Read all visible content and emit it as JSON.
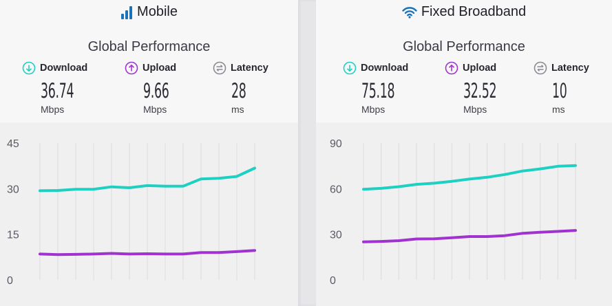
{
  "panels": [
    {
      "title": "Mobile",
      "icon": "signal-bars-icon",
      "subtitle": "Global Performance",
      "metrics": {
        "download": {
          "label": "Download",
          "value": "36.74",
          "unit": "Mbps",
          "color": "#1ed0c1"
        },
        "upload": {
          "label": "Upload",
          "value": "9.66",
          "unit": "Mbps",
          "color": "#a033cf"
        },
        "latency": {
          "label": "Latency",
          "value": "28",
          "unit": "ms",
          "color": "#8a8a93"
        }
      }
    },
    {
      "title": "Fixed Broadband",
      "icon": "wifi-icon",
      "subtitle": "Global Performance",
      "metrics": {
        "download": {
          "label": "Download",
          "value": "75.18",
          "unit": "Mbps",
          "color": "#1ed0c1"
        },
        "upload": {
          "label": "Upload",
          "value": "32.52",
          "unit": "Mbps",
          "color": "#a033cf"
        },
        "latency": {
          "label": "Latency",
          "value": "10",
          "unit": "ms",
          "color": "#8a8a93"
        }
      }
    }
  ],
  "chart_data": [
    {
      "type": "line",
      "title": "Mobile",
      "ylim": [
        0,
        45
      ],
      "yticks": [
        "0",
        "15",
        "30",
        "45"
      ],
      "grid": true,
      "x": [
        1,
        2,
        3,
        4,
        5,
        6,
        7,
        8,
        9,
        10,
        11,
        12,
        13
      ],
      "series": [
        {
          "name": "Download",
          "color": "#1ed0c1",
          "values": [
            29.3,
            29.4,
            29.8,
            29.8,
            30.6,
            30.3,
            31.0,
            30.8,
            30.8,
            33.2,
            33.4,
            34.0,
            36.74
          ]
        },
        {
          "name": "Upload",
          "color": "#a033cf",
          "values": [
            8.5,
            8.3,
            8.4,
            8.5,
            8.7,
            8.5,
            8.6,
            8.5,
            8.5,
            9.0,
            9.0,
            9.3,
            9.66
          ]
        }
      ]
    },
    {
      "type": "line",
      "title": "Fixed Broadband",
      "ylim": [
        0,
        90
      ],
      "yticks": [
        "0",
        "30",
        "60",
        "90"
      ],
      "grid": true,
      "x": [
        1,
        2,
        3,
        4,
        5,
        6,
        7,
        8,
        9,
        10,
        11,
        12,
        13
      ],
      "series": [
        {
          "name": "Download",
          "color": "#1ed0c1",
          "values": [
            59.6,
            60.2,
            61.3,
            62.8,
            63.6,
            64.8,
            66.3,
            67.5,
            69.3,
            71.6,
            73.0,
            74.7,
            75.18
          ]
        },
        {
          "name": "Upload",
          "color": "#a033cf",
          "values": [
            25.0,
            25.3,
            25.8,
            26.9,
            27.0,
            27.7,
            28.5,
            28.5,
            29.1,
            30.6,
            31.3,
            31.9,
            32.52
          ]
        }
      ]
    }
  ]
}
